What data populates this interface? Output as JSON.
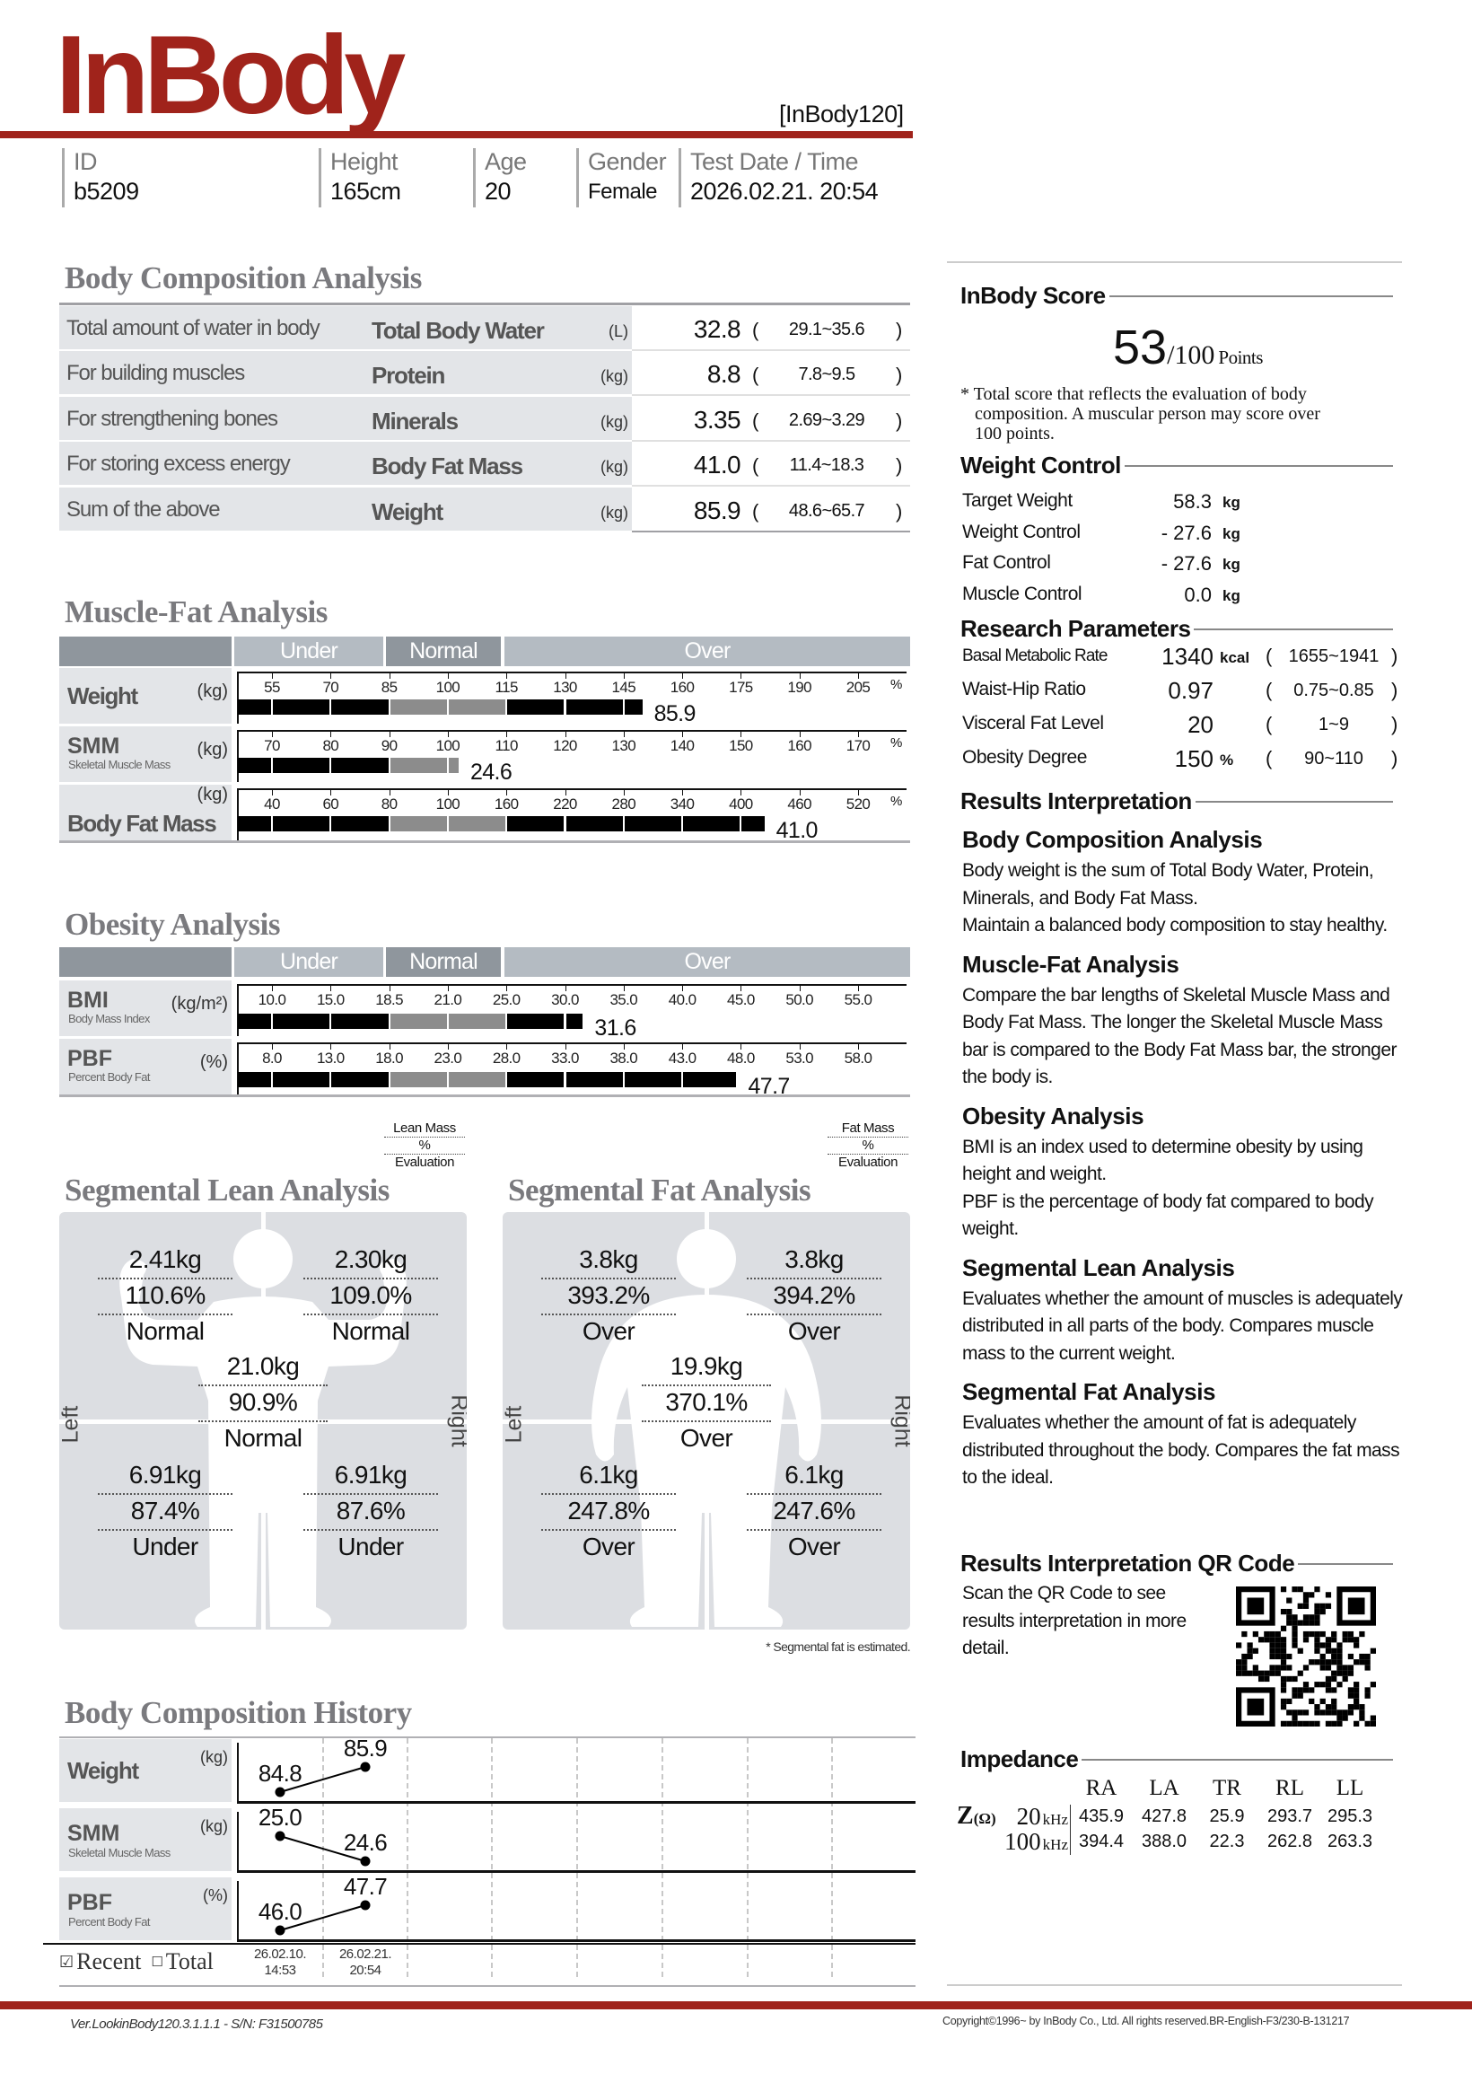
{
  "brand": {
    "logo": "InBody",
    "model": "[InBody120]",
    "accent": "#a0231b"
  },
  "info": [
    {
      "label": "ID",
      "value": "b5209"
    },
    {
      "label": "Height",
      "value": "165cm"
    },
    {
      "label": "Age",
      "value": "20"
    },
    {
      "label": "Gender",
      "value": "Female"
    },
    {
      "label": "Test Date / Time",
      "value": "2026.02.21. 20:54"
    }
  ],
  "bca": {
    "title": "Body Composition Analysis",
    "rows": [
      {
        "desc": "Total amount of water in body",
        "name": "Total Body Water",
        "unit": "(L)",
        "value": "32.8",
        "range": "29.1~35.6"
      },
      {
        "desc": "For building muscles",
        "name": "Protein",
        "unit": "(kg)",
        "value": "8.8",
        "range": "7.8~9.5"
      },
      {
        "desc": "For strengthening bones",
        "name": "Minerals",
        "unit": "(kg)",
        "value": "3.35",
        "range": "2.69~3.29"
      },
      {
        "desc": "For storing excess energy",
        "name": "Body Fat Mass",
        "unit": "(kg)",
        "value": "41.0",
        "range": "11.4~18.3"
      },
      {
        "desc": "Sum of the above",
        "name": "Weight",
        "unit": "(kg)",
        "value": "85.9",
        "range": "48.6~65.7"
      }
    ]
  },
  "mfa": {
    "title": "Muscle-Fat Analysis",
    "bands": [
      "Under",
      "Normal",
      "Over"
    ],
    "rows": [
      {
        "name": "Weight",
        "sub": "",
        "unit": "(kg)",
        "tick_unit": "%",
        "ticks": [
          "55",
          "70",
          "85",
          "100",
          "115",
          "130",
          "145",
          "160",
          "175",
          "190",
          "205"
        ],
        "value": "85.9",
        "bar_level": 150
      },
      {
        "name": "SMM",
        "sub": "Skeletal Muscle Mass",
        "unit": "(kg)",
        "tick_unit": "%",
        "ticks": [
          "70",
          "80",
          "90",
          "100",
          "110",
          "120",
          "130",
          "140",
          "150",
          "160",
          "170"
        ],
        "value": "24.6",
        "bar_level": 102
      },
      {
        "name": "Body Fat Mass",
        "sub": "",
        "unit": "(kg)",
        "tick_unit": "%",
        "ticks": [
          "40",
          "60",
          "80",
          "100",
          "160",
          "220",
          "280",
          "340",
          "400",
          "460",
          "520"
        ],
        "value": "41.0",
        "bar_level": 425
      }
    ]
  },
  "obesity": {
    "title": "Obesity Analysis",
    "bands": [
      "Under",
      "Normal",
      "Over"
    ],
    "rows": [
      {
        "name": "BMI",
        "sub": "Body Mass Index",
        "unit": "(kg/m²)",
        "tick_unit": "",
        "ticks": [
          "10.0",
          "15.0",
          "18.5",
          "21.0",
          "25.0",
          "30.0",
          "35.0",
          "40.0",
          "45.0",
          "50.0",
          "55.0"
        ],
        "value": "31.6",
        "bar_level": 31.6
      },
      {
        "name": "PBF",
        "sub": "Percent Body Fat",
        "unit": "(%)",
        "tick_unit": "",
        "ticks": [
          "8.0",
          "13.0",
          "18.0",
          "23.0",
          "28.0",
          "33.0",
          "38.0",
          "43.0",
          "48.0",
          "53.0",
          "58.0"
        ],
        "value": "47.7",
        "bar_level": 47.7
      }
    ]
  },
  "segmental_lean": {
    "title": "Segmental Lean Analysis",
    "legend": [
      "Lean Mass",
      "%",
      "Evaluation"
    ],
    "side_left": "Left",
    "side_right": "Right",
    "segments": [
      {
        "pos": "upper-left",
        "mass": "2.41kg",
        "percent": "110.6%",
        "eval": "Normal"
      },
      {
        "pos": "upper-right",
        "mass": "2.30kg",
        "percent": "109.0%",
        "eval": "Normal"
      },
      {
        "pos": "trunk",
        "mass": "21.0kg",
        "percent": "90.9%",
        "eval": "Normal"
      },
      {
        "pos": "lower-left",
        "mass": "6.91kg",
        "percent": "87.4%",
        "eval": "Under"
      },
      {
        "pos": "lower-right",
        "mass": "6.91kg",
        "percent": "87.6%",
        "eval": "Under"
      }
    ]
  },
  "segmental_fat": {
    "title": "Segmental Fat Analysis",
    "legend": [
      "Fat Mass",
      "%",
      "Evaluation"
    ],
    "side_left": "Left",
    "side_right": "Right",
    "footnote": "* Segmental fat is estimated.",
    "segments": [
      {
        "pos": "upper-left",
        "mass": "3.8kg",
        "percent": "393.2%",
        "eval": "Over"
      },
      {
        "pos": "upper-right",
        "mass": "3.8kg",
        "percent": "394.2%",
        "eval": "Over"
      },
      {
        "pos": "trunk",
        "mass": "19.9kg",
        "percent": "370.1%",
        "eval": "Over"
      },
      {
        "pos": "lower-left",
        "mass": "6.1kg",
        "percent": "247.8%",
        "eval": "Over"
      },
      {
        "pos": "lower-right",
        "mass": "6.1kg",
        "percent": "247.6%",
        "eval": "Over"
      }
    ]
  },
  "history": {
    "title": "Body Composition History",
    "rows": [
      {
        "name": "Weight",
        "sub": "",
        "unit": "(kg)",
        "values": [
          "84.8",
          "85.9"
        ]
      },
      {
        "name": "SMM",
        "sub": "Skeletal Muscle Mass",
        "unit": "(kg)",
        "values": [
          "25.0",
          "24.6"
        ]
      },
      {
        "name": "PBF",
        "sub": "Percent Body Fat",
        "unit": "(%)",
        "values": [
          "46.0",
          "47.7"
        ]
      }
    ],
    "dates": [
      [
        "26.02.10.",
        "14:53"
      ],
      [
        "26.02.21.",
        "20:54"
      ]
    ],
    "recent_label": "Recent",
    "recent_checked": true,
    "total_label": "Total",
    "total_checked": false
  },
  "score": {
    "title": "InBody Score",
    "value": "53",
    "max": "/100",
    "unit": "Points",
    "note": [
      "* Total score that reflects the evaluation of body",
      "composition. A muscular person may score over",
      "100 points."
    ]
  },
  "weight_control": {
    "title": "Weight Control",
    "rows": [
      {
        "label": "Target Weight",
        "value": "58.3",
        "unit": "kg"
      },
      {
        "label": "Weight Control",
        "value": "- 27.6",
        "unit": "kg"
      },
      {
        "label": "Fat Control",
        "value": "- 27.6",
        "unit": "kg"
      },
      {
        "label": "Muscle Control",
        "value": "0.0",
        "unit": "kg"
      }
    ]
  },
  "research": {
    "title": "Research Parameters",
    "rows": [
      {
        "label": "Basal Metabolic Rate",
        "value": "1340",
        "unit": "kcal",
        "range": "1655~1941"
      },
      {
        "label": "Waist-Hip Ratio",
        "value": "0.97",
        "unit": "",
        "range": "0.75~0.85"
      },
      {
        "label": "Visceral Fat Level",
        "value": "20",
        "unit": "",
        "range": "1~9"
      },
      {
        "label": "Obesity Degree",
        "value": "150",
        "unit": "%",
        "range": "90~110"
      }
    ]
  },
  "interpretation": {
    "title": "Results Interpretation",
    "sections": [
      {
        "heading": "Body Composition Analysis",
        "text": [
          "Body weight is the sum of Total Body Water, Protein, Minerals, and Body Fat Mass.",
          "Maintain a balanced body composition to stay healthy."
        ]
      },
      {
        "heading": "Muscle-Fat Analysis",
        "text": [
          "Compare the bar lengths of Skeletal Muscle Mass and Body Fat Mass. The longer the Skeletal Muscle Mass bar is compared to the Body Fat Mass bar, the stronger the body is."
        ]
      },
      {
        "heading": "Obesity Analysis",
        "text": [
          "BMI is an index used to determine obesity by using height and weight.",
          "PBF is the percentage of body fat compared to body weight."
        ]
      },
      {
        "heading": "Segmental Lean Analysis",
        "text": [
          "Evaluates whether the amount of muscles is adequately distributed in all parts of the body. Compares muscle mass to the current weight."
        ]
      },
      {
        "heading": "Segmental Fat Analysis",
        "text": [
          "Evaluates whether the amount of fat is adequately distributed throughout the body. Compares the fat mass to the ideal."
        ]
      }
    ]
  },
  "qr": {
    "heading": "Results Interpretation QR Code",
    "text": "Scan the QR Code to see results interpretation in more detail."
  },
  "impedance": {
    "heading": "Impedance",
    "z_label": "Z",
    "z_unit": "(Ω)",
    "columns": [
      "RA",
      "LA",
      "TR",
      "RL",
      "LL"
    ],
    "rows": [
      {
        "freq": "20",
        "unit": "kHz",
        "values": [
          "435.9",
          "427.8",
          "25.9",
          "293.7",
          "295.3"
        ]
      },
      {
        "freq": "100",
        "unit": "kHz",
        "values": [
          "394.4",
          "388.0",
          "22.3",
          "262.8",
          "263.3"
        ]
      }
    ]
  },
  "footer": {
    "version": "Ver.LookinBody120.3.1.1.1 - S/N: F31500785",
    "copyright": "Copyright©1996~ by InBody Co., Ltd. All rights reserved.BR-English-F3/230-B-131217"
  }
}
